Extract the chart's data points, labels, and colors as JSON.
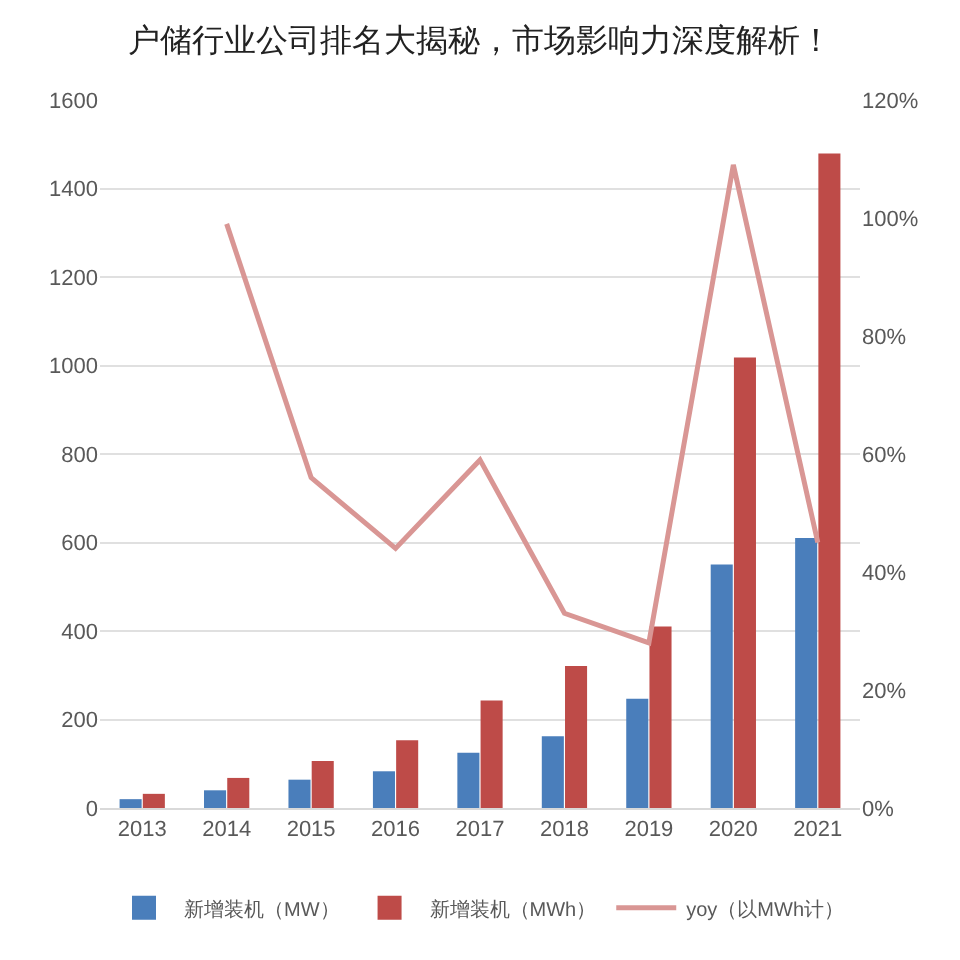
{
  "chart_data": {
    "type": "bar",
    "title": "户储行业公司排名大揭秘，市场影响力深度解析！",
    "categories": [
      "2013",
      "2014",
      "2015",
      "2016",
      "2017",
      "2018",
      "2019",
      "2020",
      "2021"
    ],
    "series": [
      {
        "name": "新增装机（MW）",
        "color": "#4a7ebb",
        "values": [
          20,
          40,
          64,
          83,
          125,
          162,
          247,
          550,
          610
        ]
      },
      {
        "name": "新增装机（MWh）",
        "color": "#be4b48",
        "values": [
          32,
          68,
          106,
          153,
          243,
          321,
          410,
          1018,
          1479
        ]
      },
      {
        "name": "yoy（以MWh计）",
        "type": "line",
        "axis": "y2",
        "color": "#d99694",
        "values": [
          null,
          99,
          56,
          44,
          59,
          33,
          28,
          109,
          45
        ]
      }
    ],
    "ylim": [
      0,
      1600
    ],
    "yticks": [
      0,
      200,
      400,
      600,
      800,
      1000,
      1200,
      1400,
      1600
    ],
    "y2lim": [
      0,
      120
    ],
    "y2ticks": [
      {
        "value": 0,
        "label": "0%"
      },
      {
        "value": 20,
        "label": "20%"
      },
      {
        "value": 40,
        "label": "40%"
      },
      {
        "value": 60,
        "label": "60%"
      },
      {
        "value": 80,
        "label": "80%"
      },
      {
        "value": 100,
        "label": "100%"
      },
      {
        "value": 120,
        "label": "120%"
      }
    ],
    "grid": "y",
    "legend": "bottom",
    "marker": "none"
  }
}
